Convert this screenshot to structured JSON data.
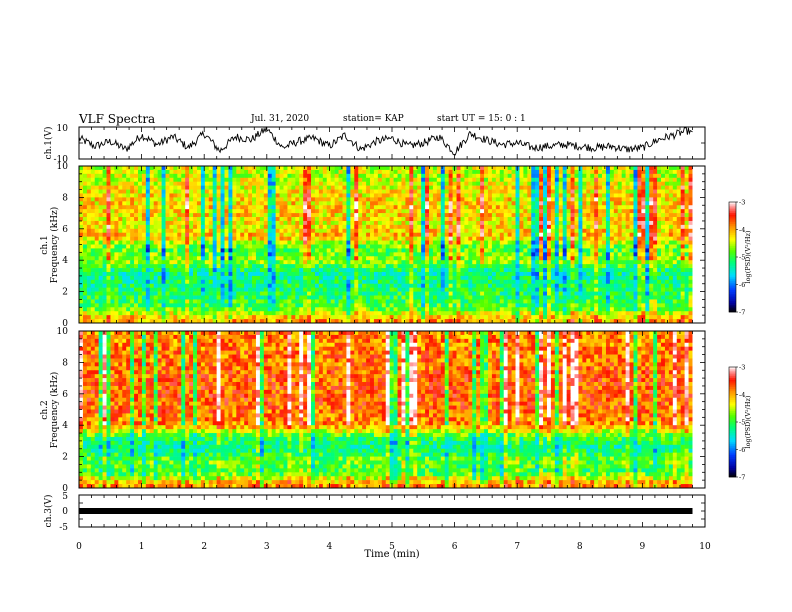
{
  "header": {
    "title": "VLF Spectra",
    "date": "Jul. 31, 2020",
    "station": "station= KAP",
    "start": "start UT =  15: 0  : 1"
  },
  "chart_data": [
    {
      "type": "line",
      "panel": "ch1-waveform",
      "ylabel": "ch.1(V)",
      "ylim": [
        -10,
        10
      ],
      "ytick_labels": [
        "10",
        "-10"
      ],
      "xlim": [
        0,
        10
      ],
      "x": [
        0,
        0.25,
        0.5,
        0.75,
        1.0,
        1.25,
        1.5,
        1.75,
        2.0,
        2.25,
        2.5,
        2.75,
        3.0,
        3.25,
        3.5,
        3.75,
        4.0,
        4.25,
        4.5,
        4.75,
        5.0,
        5.25,
        5.5,
        5.75,
        6.0,
        6.25,
        6.5,
        6.75,
        7.0,
        7.25,
        7.5,
        7.75,
        8.0,
        8.25,
        8.5,
        8.75,
        9.0,
        9.25,
        9.5,
        9.75,
        9.8
      ],
      "values": [
        3,
        -2,
        1,
        -4,
        5,
        -1,
        4,
        -3,
        6,
        -5,
        4,
        2,
        9,
        -3,
        1,
        3,
        -2,
        5,
        -4,
        1,
        3,
        -2,
        0,
        4,
        -6,
        6,
        2,
        -1,
        0,
        -3,
        -2,
        -1,
        -2,
        -3,
        -2,
        -4,
        -3,
        2,
        5,
        8,
        5
      ]
    },
    {
      "type": "heatmap",
      "panel": "ch1-spectrogram",
      "ylabel": "ch.1",
      "ylabel2": "Frequency (kHz)",
      "ylim": [
        0,
        10
      ],
      "ytick_labels": [
        "0",
        "2",
        "4",
        "6",
        "8",
        "10"
      ],
      "xlim": [
        0,
        10
      ],
      "zlabel": "log(PSD)(V²/Hz)",
      "zlim": [
        -7,
        -3
      ],
      "colorbar_ticks": [
        "-3",
        "-4",
        "-5",
        "-6",
        "-7"
      ],
      "band_centers_khz": [
        0.25,
        1.0,
        1.75,
        2.5,
        3.25,
        4.0,
        4.75,
        5.5,
        6.25,
        7.0,
        7.75,
        8.5,
        9.25
      ],
      "band_mean_log_psd": [
        -4.0,
        -4.9,
        -5.1,
        -5.2,
        -5.3,
        -4.6,
        -4.9,
        -4.1,
        -4.3,
        -4.2,
        -4.2,
        -4.3,
        -4.5
      ]
    },
    {
      "type": "heatmap",
      "panel": "ch2-spectrogram",
      "ylabel": "ch.2",
      "ylabel2": "Frequency (kHz)",
      "ylim": [
        0,
        10
      ],
      "ytick_labels": [
        "0",
        "2",
        "4",
        "6",
        "8",
        "10"
      ],
      "xlim": [
        0,
        10
      ],
      "zlabel": "log(PSD)(V²/Hz)",
      "zlim": [
        -7,
        -3
      ],
      "colorbar_ticks": [
        "-3",
        "-4",
        "-5",
        "-6",
        "-7"
      ],
      "band_centers_khz": [
        0.25,
        1.0,
        1.75,
        2.5,
        3.25,
        4.0,
        4.75,
        5.5,
        6.25,
        7.0,
        7.75,
        8.5,
        9.25
      ],
      "band_mean_log_psd": [
        -3.9,
        -5.0,
        -4.8,
        -5.3,
        -5.0,
        -3.9,
        -3.8,
        -3.7,
        -3.7,
        -3.7,
        -3.8,
        -3.8,
        -3.9
      ]
    },
    {
      "type": "line",
      "panel": "ch3-waveform",
      "ylabel": "ch.3(V)",
      "ylim": [
        -5,
        5
      ],
      "ytick_labels": [
        "5",
        "0",
        "-5"
      ],
      "xlim": [
        0,
        10
      ],
      "x": [
        0,
        9.8
      ],
      "values": [
        0,
        0
      ]
    }
  ],
  "xaxis": {
    "label": "Time (min)",
    "ticks": [
      "0",
      "1",
      "2",
      "3",
      "4",
      "5",
      "6",
      "7",
      "8",
      "9",
      "10"
    ]
  }
}
